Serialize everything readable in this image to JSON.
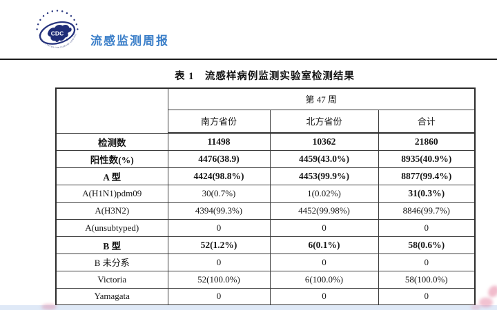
{
  "header": {
    "title": "流感监测周报",
    "logo": {
      "cdc_text": "CDC",
      "ring_text": "CHINESE CENTER FOR DISEASE CONTROL AND PREVENTION"
    }
  },
  "table": {
    "caption": "表 1　流感样病例监测实验室检测结果",
    "week_header": "第 47 周",
    "columns": [
      "南方省份",
      "北方省份",
      "合计"
    ],
    "rows": [
      {
        "label": "检测数",
        "values": [
          "11498",
          "10362",
          "21860"
        ],
        "bold": true
      },
      {
        "label": "阳性数(%)",
        "values": [
          "4476(38.9)",
          "4459(43.0%)",
          "8935(40.9%)"
        ],
        "bold": true
      },
      {
        "label": "A 型",
        "values": [
          "4424(98.8%)",
          "4453(99.9%)",
          "8877(99.4%)"
        ],
        "bold": true
      },
      {
        "label": "A(H1N1)pdm09",
        "values": [
          "30(0.7%)",
          "1(0.02%)",
          "31(0.3%)"
        ],
        "bold": false,
        "bold_cells": [
          2
        ]
      },
      {
        "label": "A(H3N2)",
        "values": [
          "4394(99.3%)",
          "4452(99.98%)",
          "8846(99.7%)"
        ],
        "bold": false
      },
      {
        "label": "A(unsubtyped)",
        "values": [
          "0",
          "0",
          "0"
        ],
        "bold": false
      },
      {
        "label": "B 型",
        "values": [
          "52(1.2%)",
          "6(0.1%)",
          "58(0.6%)"
        ],
        "bold": true
      },
      {
        "label": "B 未分系",
        "values": [
          "0",
          "0",
          "0"
        ],
        "bold": false
      },
      {
        "label": "Victoria",
        "values": [
          "52(100.0%)",
          "6(100.0%)",
          "58(100.0%)"
        ],
        "bold": false
      },
      {
        "label": "Yamagata",
        "values": [
          "0",
          "0",
          "0"
        ],
        "bold": false
      }
    ]
  },
  "colors": {
    "accent_blue": "#3a7ec8",
    "logo_navy": "#26337e",
    "rule_dark": "#1c1c1c",
    "bottom_strip": "#dfe9f7",
    "pink_mark": "#de809e"
  }
}
